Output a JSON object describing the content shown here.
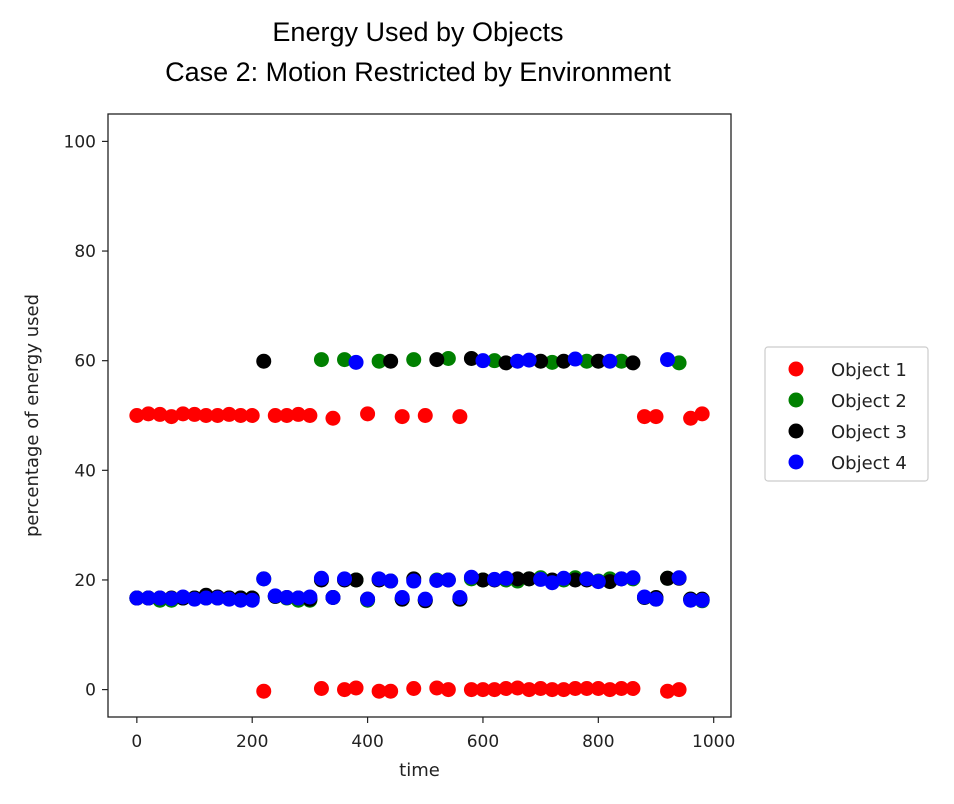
{
  "chart_data": {
    "type": "scatter",
    "title": "Energy Used by Objects",
    "subtitle": "Case 2:  Motion Restricted by Environment",
    "xlabel": "time",
    "ylabel": "percentage of energy used",
    "xlim": [
      -50,
      1030
    ],
    "ylim": [
      -5,
      105
    ],
    "xticks": [
      0,
      200,
      400,
      600,
      800,
      1000
    ],
    "yticks": [
      0,
      20,
      40,
      60,
      80,
      100
    ],
    "legend_position": "center-right outside",
    "grid": false,
    "series": [
      {
        "name": "Object 1",
        "color": "#ff0000",
        "points": [
          [
            0,
            50
          ],
          [
            20,
            50.3
          ],
          [
            40,
            50.2
          ],
          [
            60,
            49.8
          ],
          [
            80,
            50.3
          ],
          [
            100,
            50.2
          ],
          [
            120,
            50
          ],
          [
            140,
            50
          ],
          [
            160,
            50.2
          ],
          [
            180,
            50
          ],
          [
            200,
            50
          ],
          [
            220,
            -0.3
          ],
          [
            240,
            50
          ],
          [
            260,
            50
          ],
          [
            280,
            50.2
          ],
          [
            300,
            50
          ],
          [
            320,
            0.2
          ],
          [
            340,
            49.5
          ],
          [
            360,
            0
          ],
          [
            380,
            0.3
          ],
          [
            400,
            50.3
          ],
          [
            420,
            -0.3
          ],
          [
            440,
            -0.3
          ],
          [
            460,
            49.8
          ],
          [
            480,
            0.2
          ],
          [
            500,
            50
          ],
          [
            520,
            0.3
          ],
          [
            540,
            0
          ],
          [
            560,
            49.8
          ],
          [
            580,
            0
          ],
          [
            600,
            0
          ],
          [
            620,
            0
          ],
          [
            640,
            0.2
          ],
          [
            660,
            0.3
          ],
          [
            680,
            0
          ],
          [
            700,
            0.2
          ],
          [
            720,
            0
          ],
          [
            740,
            0
          ],
          [
            760,
            0.2
          ],
          [
            780,
            0.2
          ],
          [
            800,
            0.2
          ],
          [
            820,
            0
          ],
          [
            840,
            0.2
          ],
          [
            860,
            0.2
          ],
          [
            880,
            49.8
          ],
          [
            900,
            49.8
          ],
          [
            920,
            -0.3
          ],
          [
            940,
            0
          ],
          [
            960,
            49.5
          ],
          [
            980,
            50.3
          ]
        ]
      },
      {
        "name": "Object 2",
        "color": "#008000",
        "points": [
          [
            0,
            16.7
          ],
          [
            20,
            16.7
          ],
          [
            40,
            16.3
          ],
          [
            60,
            16.3
          ],
          [
            80,
            16.7
          ],
          [
            100,
            16.7
          ],
          [
            120,
            16.7
          ],
          [
            140,
            16.7
          ],
          [
            160,
            16.7
          ],
          [
            180,
            16.7
          ],
          [
            200,
            16.7
          ],
          [
            220,
            20.2
          ],
          [
            240,
            17
          ],
          [
            260,
            16.7
          ],
          [
            280,
            16.3
          ],
          [
            300,
            16.3
          ],
          [
            320,
            60.2
          ],
          [
            340,
            16.8
          ],
          [
            360,
            60.2
          ],
          [
            380,
            20
          ],
          [
            400,
            16.3
          ],
          [
            420,
            59.9
          ],
          [
            440,
            19.8
          ],
          [
            460,
            16.5
          ],
          [
            480,
            60.2
          ],
          [
            500,
            16.3
          ],
          [
            520,
            20
          ],
          [
            540,
            60.4
          ],
          [
            560,
            16.5
          ],
          [
            580,
            20.2
          ],
          [
            600,
            20
          ],
          [
            620,
            60
          ],
          [
            640,
            20
          ],
          [
            660,
            19.8
          ],
          [
            680,
            20.2
          ],
          [
            700,
            20.4
          ],
          [
            720,
            59.7
          ],
          [
            740,
            20
          ],
          [
            760,
            20.4
          ],
          [
            780,
            59.9
          ],
          [
            800,
            19.8
          ],
          [
            820,
            20.2
          ],
          [
            840,
            59.9
          ],
          [
            860,
            20.2
          ],
          [
            880,
            16.8
          ],
          [
            900,
            16.5
          ],
          [
            920,
            20.3
          ],
          [
            940,
            59.6
          ],
          [
            960,
            16.5
          ],
          [
            980,
            16.2
          ]
        ]
      },
      {
        "name": "Object 3",
        "color": "#000000",
        "points": [
          [
            0,
            16.7
          ],
          [
            20,
            16.7
          ],
          [
            40,
            16.7
          ],
          [
            60,
            16.7
          ],
          [
            80,
            16.7
          ],
          [
            100,
            16.7
          ],
          [
            120,
            17.2
          ],
          [
            140,
            16.9
          ],
          [
            160,
            16.7
          ],
          [
            180,
            16.7
          ],
          [
            200,
            16.7
          ],
          [
            220,
            59.9
          ],
          [
            240,
            17
          ],
          [
            260,
            16.8
          ],
          [
            280,
            16.7
          ],
          [
            300,
            16.5
          ],
          [
            320,
            20
          ],
          [
            340,
            16.8
          ],
          [
            360,
            20
          ],
          [
            380,
            20
          ],
          [
            400,
            16.5
          ],
          [
            420,
            20
          ],
          [
            440,
            59.9
          ],
          [
            460,
            16.5
          ],
          [
            480,
            20.2
          ],
          [
            500,
            16.2
          ],
          [
            520,
            60.2
          ],
          [
            540,
            20
          ],
          [
            560,
            16.5
          ],
          [
            580,
            60.4
          ],
          [
            600,
            20
          ],
          [
            620,
            20
          ],
          [
            640,
            59.6
          ],
          [
            660,
            20.2
          ],
          [
            680,
            20.2
          ],
          [
            700,
            59.9
          ],
          [
            720,
            20
          ],
          [
            740,
            59.9
          ],
          [
            760,
            20
          ],
          [
            780,
            20
          ],
          [
            800,
            59.9
          ],
          [
            820,
            19.7
          ],
          [
            840,
            20.2
          ],
          [
            860,
            59.6
          ],
          [
            880,
            16.8
          ],
          [
            900,
            16.8
          ],
          [
            920,
            20.3
          ],
          [
            940,
            20.3
          ],
          [
            960,
            16.5
          ],
          [
            980,
            16.5
          ]
        ]
      },
      {
        "name": "Object 4",
        "color": "#0000ff",
        "points": [
          [
            0,
            16.7
          ],
          [
            20,
            16.7
          ],
          [
            40,
            16.7
          ],
          [
            60,
            16.6
          ],
          [
            80,
            16.9
          ],
          [
            100,
            16.5
          ],
          [
            120,
            16.7
          ],
          [
            140,
            16.7
          ],
          [
            160,
            16.5
          ],
          [
            180,
            16.3
          ],
          [
            200,
            16.3
          ],
          [
            220,
            20.2
          ],
          [
            240,
            17.1
          ],
          [
            260,
            16.8
          ],
          [
            280,
            16.7
          ],
          [
            300,
            16.9
          ],
          [
            320,
            20.3
          ],
          [
            340,
            16.8
          ],
          [
            360,
            20.2
          ],
          [
            380,
            59.7
          ],
          [
            400,
            16.5
          ],
          [
            420,
            20.2
          ],
          [
            440,
            19.8
          ],
          [
            460,
            16.8
          ],
          [
            480,
            19.8
          ],
          [
            500,
            16.5
          ],
          [
            520,
            19.9
          ],
          [
            540,
            20
          ],
          [
            560,
            16.8
          ],
          [
            580,
            20.5
          ],
          [
            600,
            60
          ],
          [
            620,
            20.1
          ],
          [
            640,
            20.3
          ],
          [
            660,
            59.9
          ],
          [
            680,
            60.1
          ],
          [
            700,
            20.1
          ],
          [
            720,
            19.5
          ],
          [
            740,
            20.3
          ],
          [
            760,
            60.3
          ],
          [
            780,
            20.2
          ],
          [
            800,
            19.7
          ],
          [
            820,
            59.9
          ],
          [
            840,
            20.2
          ],
          [
            860,
            20.4
          ],
          [
            880,
            16.9
          ],
          [
            900,
            16.5
          ],
          [
            920,
            60.2
          ],
          [
            940,
            20.4
          ],
          [
            960,
            16.3
          ],
          [
            980,
            16.3
          ]
        ]
      }
    ]
  }
}
